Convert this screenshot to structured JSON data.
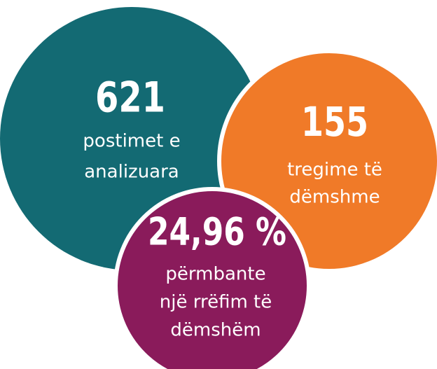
{
  "stats": [
    {
      "value": "621",
      "label_lines": [
        "postimet e",
        "analizuara"
      ]
    },
    {
      "value": "155",
      "label_lines": [
        "tregime të",
        "dëmshme"
      ]
    },
    {
      "value": "24,96 %",
      "label_lines": [
        "përmbante",
        "një rrëfim të",
        "dëmshëm"
      ]
    }
  ]
}
